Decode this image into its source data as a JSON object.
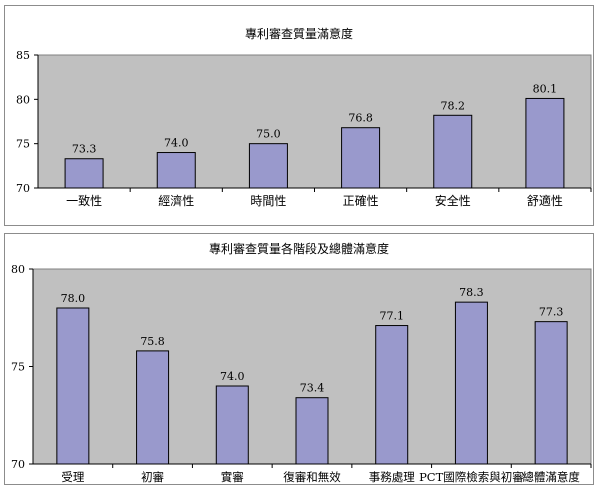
{
  "colors": {
    "plot_bg": "#c0c0c0",
    "bar_fill": "#9999cc",
    "bar_stroke": "#000000",
    "panel_border": "#8c8c8c"
  },
  "chart_data": [
    {
      "type": "bar",
      "title": "專利審查質量滿意度",
      "xlabel": "",
      "ylabel": "",
      "categories": [
        "一致性",
        "經濟性",
        "時間性",
        "正確性",
        "安全性",
        "舒適性"
      ],
      "values": [
        73.3,
        74.0,
        75.0,
        76.8,
        78.2,
        80.1
      ],
      "value_labels": [
        "73.3",
        "74.0",
        "75.0",
        "76.8",
        "78.2",
        "80.1"
      ],
      "ylim": [
        70,
        85
      ],
      "yticks": [
        70,
        75,
        80,
        85
      ],
      "grid": false,
      "legend": "none"
    },
    {
      "type": "bar",
      "title": "專利審查質量各階段及總體滿意度",
      "xlabel": "",
      "ylabel": "",
      "categories": [
        "受理",
        "初審",
        "實審",
        "復審和無效",
        "事務處理",
        "PCT國際檢索與初審",
        "總體滿意度"
      ],
      "values": [
        78.0,
        75.8,
        74.0,
        73.4,
        77.1,
        78.3,
        77.3
      ],
      "value_labels": [
        "78.0",
        "75.8",
        "74.0",
        "73.4",
        "77.1",
        "78.3",
        "77.3"
      ],
      "ylim": [
        70,
        80
      ],
      "yticks": [
        70,
        75,
        80
      ],
      "grid": false,
      "legend": "none"
    }
  ]
}
